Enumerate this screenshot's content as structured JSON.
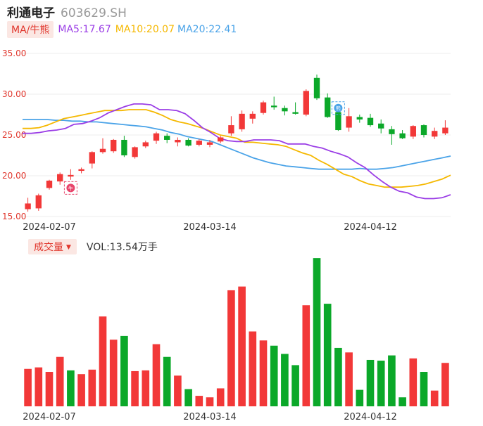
{
  "header": {
    "name": "利通电子",
    "code": "603629.SH"
  },
  "ma_legend": {
    "button": "MA/牛熊",
    "ma5": "MA5:17.67",
    "ma10": "MA10:20.07",
    "ma20": "MA20:22.41"
  },
  "volume_legend": {
    "button": "成交量",
    "value": "VOL:13.54万手"
  },
  "colors": {
    "up": "#f23838",
    "down": "#0ba829",
    "ma5": "#9b3ee6",
    "ma10": "#f5b800",
    "ma20": "#4aa3e8",
    "axis_label": "#e0352b"
  },
  "icons": [
    "bull-badge-icon",
    "bear-badge-icon"
  ],
  "chart_data": [
    {
      "type": "candlestick",
      "title": "",
      "ylim": [
        15,
        35
      ],
      "yticks": [
        "15.00",
        "20.00",
        "25.00",
        "30.00",
        "35.00"
      ],
      "xtick_labels": [
        {
          "index": 2,
          "label": "2024-02-07"
        },
        {
          "index": 17,
          "label": "2024-03-14"
        },
        {
          "index": 32,
          "label": "2024-04-12"
        }
      ],
      "grid": true,
      "candles": [
        {
          "o": 15.9,
          "h": 17.3,
          "l": 15.6,
          "c": 16.6
        },
        {
          "o": 16.0,
          "h": 17.8,
          "l": 15.7,
          "c": 17.6
        },
        {
          "o": 18.5,
          "h": 19.5,
          "l": 18.3,
          "c": 19.4
        },
        {
          "o": 19.3,
          "h": 20.4,
          "l": 18.9,
          "c": 20.2
        },
        {
          "o": 19.9,
          "h": 20.8,
          "l": 19.5,
          "c": 20.1
        },
        {
          "o": 20.6,
          "h": 21.0,
          "l": 20.3,
          "c": 20.8
        },
        {
          "o": 21.5,
          "h": 23.0,
          "l": 20.9,
          "c": 22.9
        },
        {
          "o": 22.9,
          "h": 24.6,
          "l": 22.7,
          "c": 23.3
        },
        {
          "o": 23.0,
          "h": 24.5,
          "l": 22.8,
          "c": 24.4
        },
        {
          "o": 24.4,
          "h": 24.9,
          "l": 22.3,
          "c": 22.5
        },
        {
          "o": 22.3,
          "h": 23.6,
          "l": 22.1,
          "c": 23.5
        },
        {
          "o": 23.6,
          "h": 24.3,
          "l": 23.4,
          "c": 24.1
        },
        {
          "o": 24.3,
          "h": 25.4,
          "l": 23.9,
          "c": 25.2
        },
        {
          "o": 24.9,
          "h": 25.2,
          "l": 24.0,
          "c": 24.4
        },
        {
          "o": 24.1,
          "h": 24.7,
          "l": 23.6,
          "c": 24.4
        },
        {
          "o": 24.4,
          "h": 24.6,
          "l": 23.6,
          "c": 23.7
        },
        {
          "o": 23.8,
          "h": 24.5,
          "l": 23.6,
          "c": 24.3
        },
        {
          "o": 23.8,
          "h": 24.4,
          "l": 23.5,
          "c": 24.1
        },
        {
          "o": 24.2,
          "h": 24.9,
          "l": 24.0,
          "c": 24.7
        },
        {
          "o": 25.2,
          "h": 27.3,
          "l": 24.9,
          "c": 26.2
        },
        {
          "o": 25.7,
          "h": 28.0,
          "l": 25.4,
          "c": 27.6
        },
        {
          "o": 27.0,
          "h": 27.9,
          "l": 26.4,
          "c": 27.6
        },
        {
          "o": 27.7,
          "h": 29.2,
          "l": 27.5,
          "c": 29.0
        },
        {
          "o": 28.6,
          "h": 29.7,
          "l": 28.1,
          "c": 28.4
        },
        {
          "o": 28.3,
          "h": 28.6,
          "l": 27.4,
          "c": 27.9
        },
        {
          "o": 27.8,
          "h": 29.0,
          "l": 27.5,
          "c": 27.6
        },
        {
          "o": 27.5,
          "h": 30.6,
          "l": 27.3,
          "c": 30.4
        },
        {
          "o": 32.0,
          "h": 32.4,
          "l": 29.3,
          "c": 29.5
        },
        {
          "o": 29.6,
          "h": 30.1,
          "l": 27.1,
          "c": 27.2
        },
        {
          "o": 27.8,
          "h": 28.0,
          "l": 25.5,
          "c": 25.6
        },
        {
          "o": 25.9,
          "h": 28.3,
          "l": 25.4,
          "c": 27.3
        },
        {
          "o": 27.2,
          "h": 27.5,
          "l": 26.5,
          "c": 26.9
        },
        {
          "o": 27.1,
          "h": 27.6,
          "l": 26.0,
          "c": 26.2
        },
        {
          "o": 26.4,
          "h": 26.9,
          "l": 25.2,
          "c": 25.8
        },
        {
          "o": 25.7,
          "h": 26.1,
          "l": 23.8,
          "c": 25.1
        },
        {
          "o": 25.2,
          "h": 25.6,
          "l": 24.5,
          "c": 24.6
        },
        {
          "o": 24.8,
          "h": 26.2,
          "l": 24.5,
          "c": 26.1
        },
        {
          "o": 26.2,
          "h": 26.3,
          "l": 24.7,
          "c": 25.0
        },
        {
          "o": 24.8,
          "h": 25.9,
          "l": 24.5,
          "c": 25.5
        },
        {
          "o": 25.2,
          "h": 26.8,
          "l": 25.0,
          "c": 25.9
        }
      ],
      "ma5": [
        25.2,
        25.2,
        25.3,
        25.5,
        25.6,
        25.8,
        26.3,
        26.4,
        26.7,
        27.1,
        27.7,
        28.1,
        28.5,
        28.8,
        28.8,
        28.7,
        28.1,
        28.1,
        28.0,
        27.6,
        26.8,
        25.9,
        25.3,
        24.6,
        24.3,
        24.2,
        24.2,
        24.4,
        24.4,
        24.4,
        24.3,
        23.9,
        23.9,
        23.9,
        23.6,
        23.4,
        23.0,
        22.7,
        22.3,
        21.6,
        21.0,
        20.1,
        19.3,
        18.6,
        18.1,
        17.9,
        17.4,
        17.2,
        17.2,
        17.3,
        17.67
      ],
      "ma10": [
        25.8,
        25.8,
        25.9,
        26.2,
        26.6,
        27.0,
        27.2,
        27.4,
        27.6,
        27.8,
        28.0,
        28.0,
        28.0,
        28.1,
        28.1,
        28.1,
        27.8,
        27.4,
        26.9,
        26.6,
        26.4,
        26.1,
        25.8,
        25.4,
        25.0,
        24.8,
        24.6,
        24.1,
        24.1,
        24.0,
        23.9,
        23.8,
        23.6,
        23.2,
        22.8,
        22.5,
        21.9,
        21.4,
        20.8,
        20.2,
        19.9,
        19.4,
        19.0,
        18.8,
        18.6,
        18.6,
        18.6,
        18.7,
        18.8,
        19.0,
        19.3,
        19.6,
        20.07
      ],
      "ma20": [
        26.9,
        26.9,
        26.9,
        26.9,
        26.8,
        26.8,
        26.7,
        26.7,
        26.6,
        26.6,
        26.5,
        26.4,
        26.3,
        26.2,
        26.1,
        26.0,
        25.8,
        25.6,
        25.3,
        25.1,
        24.8,
        24.6,
        24.4,
        24.2,
        23.8,
        23.4,
        23.0,
        22.6,
        22.2,
        21.9,
        21.6,
        21.4,
        21.2,
        21.1,
        21.0,
        20.9,
        20.8,
        20.8,
        20.8,
        20.8,
        20.8,
        20.9,
        20.8,
        20.8,
        20.9,
        21.0,
        21.2,
        21.4,
        21.6,
        21.8,
        22.0,
        22.2,
        22.41
      ],
      "markers": [
        {
          "index": 4,
          "value": 18.5,
          "icon": "bull-badge-icon",
          "glyph": "牛"
        },
        {
          "index": 29,
          "value": 28.3,
          "icon": "bear-badge-icon",
          "glyph": "熊"
        }
      ]
    },
    {
      "type": "bar",
      "title": "",
      "unit": "万手",
      "values": [
        5.0,
        5.2,
        4.6,
        6.6,
        4.8,
        4.3,
        4.9,
        12.0,
        8.9,
        9.4,
        4.7,
        4.8,
        8.3,
        6.6,
        4.1,
        2.3,
        1.4,
        1.2,
        2.4,
        15.5,
        16.0,
        10.0,
        8.8,
        8.1,
        7.0,
        5.5,
        13.5,
        19.8,
        13.7,
        7.8,
        7.2,
        2.2,
        6.2,
        6.1,
        6.8,
        1.2,
        6.4,
        4.6,
        2.1,
        5.8
      ],
      "up": [
        true,
        true,
        true,
        true,
        false,
        true,
        true,
        true,
        true,
        false,
        true,
        true,
        true,
        false,
        true,
        false,
        true,
        true,
        true,
        true,
        true,
        true,
        true,
        false,
        false,
        false,
        true,
        false,
        false,
        false,
        true,
        false,
        false,
        false,
        false,
        false,
        true,
        false,
        true,
        true
      ],
      "ylim": [
        0,
        20
      ],
      "xtick_labels": [
        {
          "index": 2,
          "label": "2024-02-07"
        },
        {
          "index": 17,
          "label": "2024-03-14"
        },
        {
          "index": 32,
          "label": "2024-04-12"
        }
      ]
    }
  ]
}
